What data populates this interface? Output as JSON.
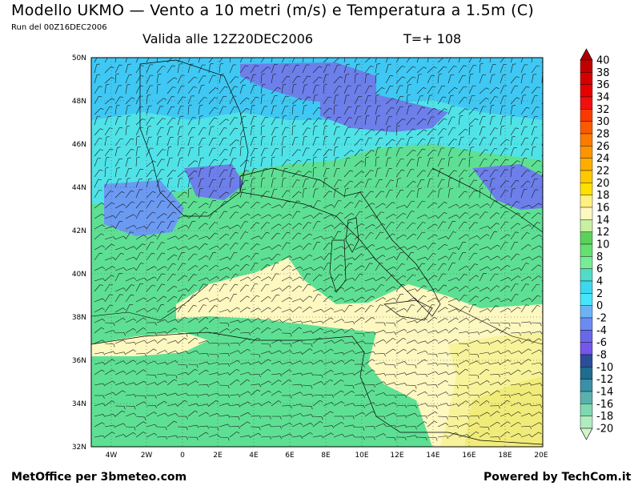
{
  "header": {
    "title": "Modello UKMO — Vento a 10 metri (m/s) e Temperatura a 1.5m (C)",
    "run": "Run del 00Z16DEC2006",
    "valid": "Valida alle 12Z20DEC2006",
    "timestep": "T=+ 108"
  },
  "footer": {
    "left": "MetOffice per 3bmeteo.com",
    "right": "Powered by TechCom.it"
  },
  "axes": {
    "lat_labels": [
      "50N",
      "48N",
      "46N",
      "44N",
      "42N",
      "40N",
      "38N",
      "36N",
      "34N",
      "32N"
    ],
    "lon_labels": [
      "4W",
      "2W",
      "0",
      "2E",
      "4E",
      "6E",
      "8E",
      "10E",
      "12E",
      "14E",
      "16E",
      "18E",
      "20E"
    ]
  },
  "colorbar": {
    "labels": [
      "40",
      "38",
      "36",
      "34",
      "32",
      "30",
      "28",
      "26",
      "24",
      "22",
      "20",
      "18",
      "16",
      "14",
      "12",
      "10",
      "8",
      "6",
      "4",
      "2",
      "0",
      "-2",
      "-4",
      "-6",
      "-8",
      "-10",
      "-12",
      "-14",
      "-16",
      "-18",
      "-20"
    ],
    "colors": [
      "#c00000",
      "#d40000",
      "#e60000",
      "#f01010",
      "#f83a00",
      "#fa5a00",
      "#fc7a00",
      "#fe9400",
      "#ffae00",
      "#ffc800",
      "#ffe000",
      "#fff080",
      "#fdf7c0",
      "#c8f0a0",
      "#5ad25a",
      "#64e070",
      "#78ec96",
      "#50dcc8",
      "#3cd8f0",
      "#46e6fa",
      "#6ab4f6",
      "#6a8cf2",
      "#6868ea",
      "#7456ea",
      "#2a4e9a",
      "#1f6c8e",
      "#3a90a6",
      "#5ab0ae",
      "#7ed8b0",
      "#b0ecc0"
    ],
    "top_color": "#a80000",
    "bottom_color": "#d2f4c8"
  }
}
